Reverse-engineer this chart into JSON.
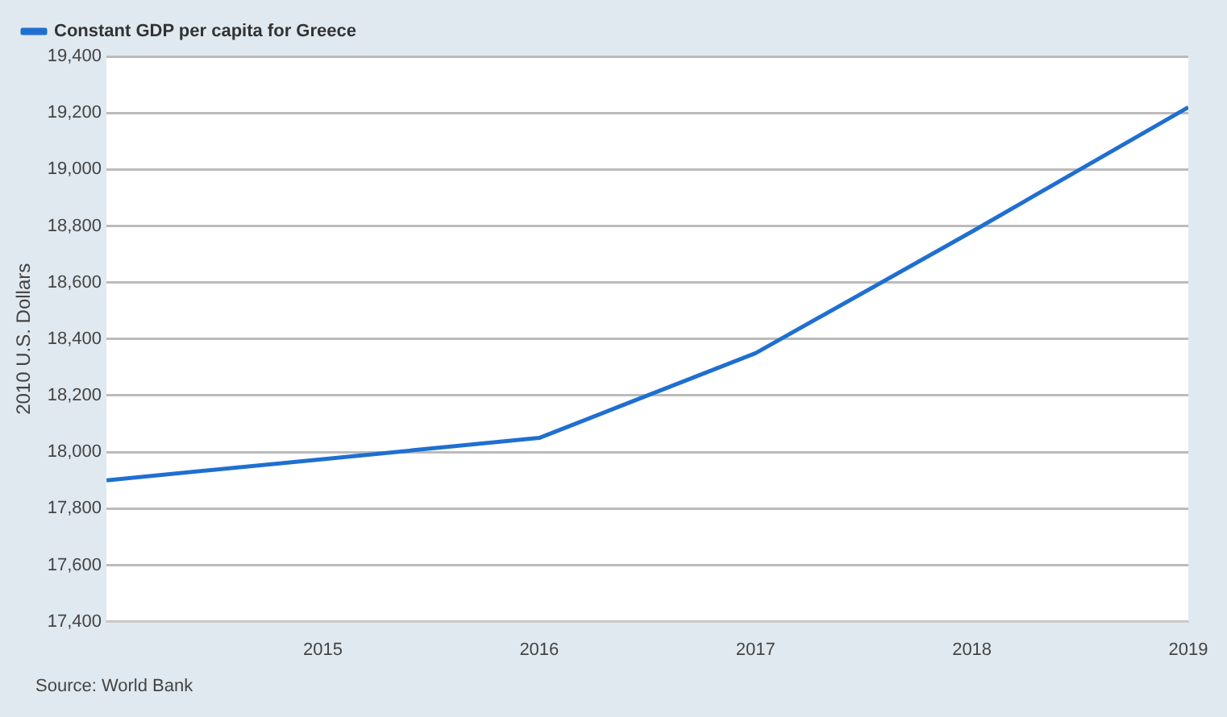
{
  "chart_data": {
    "type": "line",
    "ylabel": "2010 U.S. Dollars",
    "x": [
      2014,
      2015,
      2016,
      2017,
      2018,
      2019
    ],
    "series": [
      {
        "name": "Constant GDP per capita for Greece",
        "color": "#1f6fd1",
        "values": [
          17900,
          17975,
          18050,
          18350,
          18780,
          19220
        ]
      }
    ],
    "xlim": [
      2014,
      2019
    ],
    "xticks": [
      2015,
      2016,
      2017,
      2018,
      2019
    ],
    "ylim": [
      17400,
      19400
    ],
    "yticks": [
      {
        "value": 17400,
        "label": "17,400"
      },
      {
        "value": 17600,
        "label": "17,600"
      },
      {
        "value": 17800,
        "label": "17,800"
      },
      {
        "value": 18000,
        "label": "18,000"
      },
      {
        "value": 18200,
        "label": "18,200"
      },
      {
        "value": 18400,
        "label": "18,400"
      },
      {
        "value": 18600,
        "label": "18,600"
      },
      {
        "value": 18800,
        "label": "18,800"
      },
      {
        "value": 19000,
        "label": "19,000"
      },
      {
        "value": 19200,
        "label": "19,200"
      },
      {
        "value": 19400,
        "label": "19,400"
      }
    ],
    "grid": "y",
    "legend": "top left",
    "marker": "none",
    "line_style": "solid",
    "annotations": [
      "Source: World Bank"
    ]
  }
}
